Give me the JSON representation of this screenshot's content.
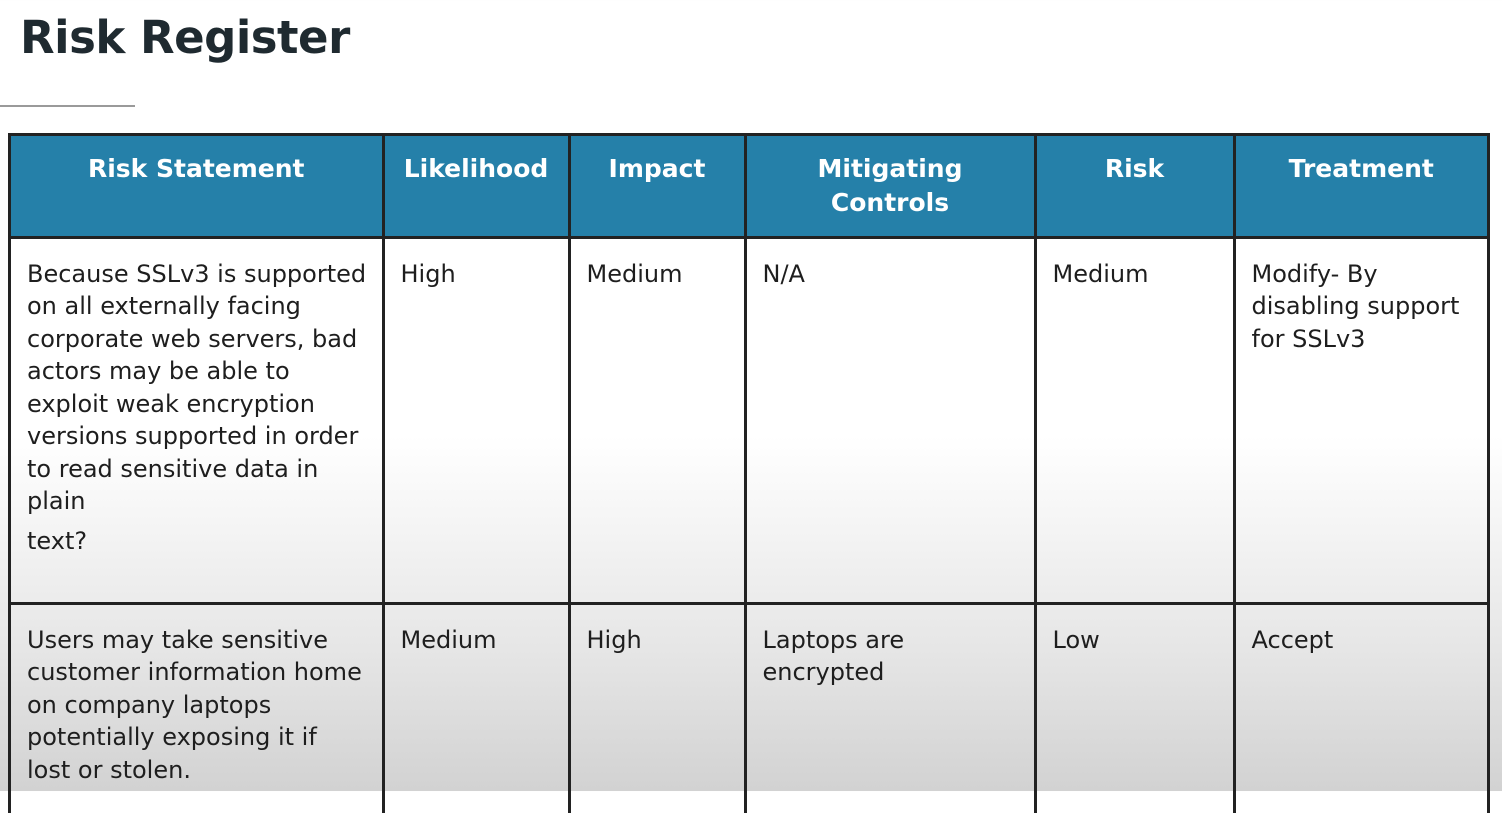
{
  "title": "Risk Register",
  "table": {
    "headers": [
      "Risk Statement",
      "Likelihood",
      "Impact",
      "Mitigating Controls",
      "Risk",
      "Treatment"
    ],
    "rows": [
      {
        "statement": "Because SSLv3 is supported on all externally facing corporate web servers, bad actors may be able to exploit weak encryption versions supported in order to read sensitive data in plain",
        "statement_tail": "text?",
        "likelihood": "High",
        "impact": "Medium",
        "controls": "N/A",
        "risk": "Medium",
        "treatment": "Modify- By disabling support for SSLv3"
      },
      {
        "statement": "Users may take sensitive customer information home on company laptops potentially exposing it if lost or stolen.",
        "likelihood": "Medium",
        "impact": "High",
        "controls": "Laptops are encrypted",
        "risk": "Low",
        "treatment": "Accept"
      }
    ]
  },
  "colors": {
    "header_background": "#2580a9",
    "header_text": "#ffffff",
    "border": "#222222",
    "title_text": "#1f2a30"
  }
}
